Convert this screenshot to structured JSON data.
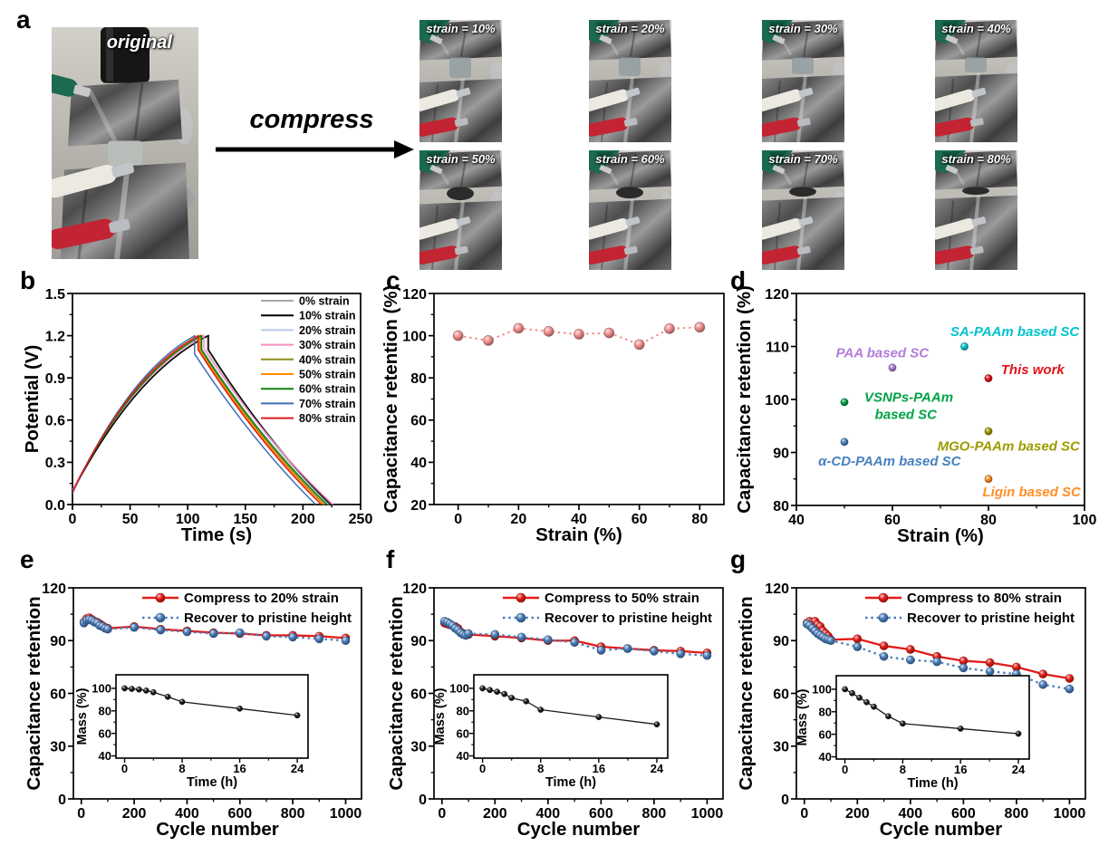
{
  "figure": {
    "panel_labels": {
      "a": "a",
      "b": "b",
      "c": "c",
      "d": "d",
      "e": "e",
      "f": "f",
      "g": "g"
    },
    "panel_a": {
      "original_label": "original",
      "arrow_label": "compress",
      "photos": [
        {
          "label": "strain = 10%",
          "strain": 10
        },
        {
          "label": "strain = 20%",
          "strain": 20
        },
        {
          "label": "strain = 30%",
          "strain": 30
        },
        {
          "label": "strain = 40%",
          "strain": 40
        },
        {
          "label": "strain = 50%",
          "strain": 50
        },
        {
          "label": "strain = 60%",
          "strain": 60
        },
        {
          "label": "strain = 70%",
          "strain": 70
        },
        {
          "label": "strain = 80%",
          "strain": 80
        }
      ]
    }
  },
  "chart_data": [
    {
      "id": "b",
      "type": "line",
      "title": "",
      "xlabel": "Time (s)",
      "ylabel": "Potential (V)",
      "xlim": [
        0,
        250
      ],
      "ylim": [
        0,
        1.5
      ],
      "xticks": [
        0,
        50,
        100,
        150,
        200,
        250
      ],
      "yticks": [
        0,
        0.3,
        0.6,
        0.9,
        1.2,
        1.5
      ],
      "ytick_labels": [
        "0.0",
        "0.3",
        "0.6",
        "0.9",
        "1.2",
        "1.5"
      ],
      "legend_position": "top-right",
      "grid": false,
      "series": [
        {
          "name": "0% strain",
          "color": "#A8A8A8",
          "v_start": 0.09,
          "v_peak": 1.2,
          "t_peak": 117,
          "ir_drop": 0.1,
          "t_end": 223
        },
        {
          "name": "10% strain",
          "color": "#000000",
          "v_start": 0.09,
          "v_peak": 1.2,
          "t_peak": 118,
          "ir_drop": 0.1,
          "t_end": 224
        },
        {
          "name": "20% strain",
          "color": "#B9CDEC",
          "v_start": 0.1,
          "v_peak": 1.2,
          "t_peak": 112,
          "ir_drop": 0.09,
          "t_end": 222
        },
        {
          "name": "30% strain",
          "color": "#F78FC1",
          "v_start": 0.1,
          "v_peak": 1.2,
          "t_peak": 114,
          "ir_drop": 0.09,
          "t_end": 226
        },
        {
          "name": "40% strain",
          "color": "#8E8E1B",
          "v_start": 0.09,
          "v_peak": 1.2,
          "t_peak": 111,
          "ir_drop": 0.1,
          "t_end": 219
        },
        {
          "name": "50% strain",
          "color": "#FF8C00",
          "v_start": 0.09,
          "v_peak": 1.2,
          "t_peak": 110,
          "ir_drop": 0.1,
          "t_end": 218
        },
        {
          "name": "60% strain",
          "color": "#108010",
          "v_start": 0.09,
          "v_peak": 1.2,
          "t_peak": 112,
          "ir_drop": 0.1,
          "t_end": 221
        },
        {
          "name": "70% strain",
          "color": "#3F6FB5",
          "v_start": 0.08,
          "v_peak": 1.2,
          "t_peak": 106,
          "ir_drop": 0.13,
          "t_end": 211
        },
        {
          "name": "80% strain",
          "color": "#E21A1A",
          "v_start": 0.09,
          "v_peak": 1.2,
          "t_peak": 109,
          "ir_drop": 0.1,
          "t_end": 216
        }
      ]
    },
    {
      "id": "c",
      "type": "scatter",
      "title": "",
      "xlabel": "Strain (%)",
      "ylabel": "Capacitance retention (%)",
      "xlim": [
        -8,
        88
      ],
      "ylim": [
        20,
        120
      ],
      "xticks": [
        0,
        20,
        40,
        60,
        80
      ],
      "yticks": [
        20,
        40,
        60,
        80,
        100,
        120
      ],
      "grid": false,
      "series": [
        {
          "name": "capacitance retention",
          "color": "#F28F8F",
          "line_style": "dotted",
          "x": [
            0,
            10,
            20,
            30,
            40,
            50,
            60,
            70,
            80
          ],
          "y": [
            100,
            97.7,
            103.5,
            102,
            100.7,
            101.3,
            95.8,
            103.3,
            104
          ]
        }
      ]
    },
    {
      "id": "d",
      "type": "scatter",
      "title": "",
      "xlabel": "Strain (%)",
      "ylabel": "Capacitance retention (%)",
      "xlim": [
        40,
        100
      ],
      "ylim": [
        80,
        120
      ],
      "xticks": [
        40,
        60,
        80,
        100
      ],
      "yticks": [
        80,
        90,
        100,
        110,
        120
      ],
      "grid": false,
      "points": [
        {
          "name": "SA-PAAm based SC",
          "x": 75,
          "y": 110,
          "color": "#00C4CC"
        },
        {
          "name": "PAA based SC",
          "x": 60,
          "y": 106,
          "color": "#B27CDB"
        },
        {
          "name": "This work",
          "x": 80,
          "y": 104,
          "color": "#E31219"
        },
        {
          "name": "VSNPs-PAAm based SC",
          "x": 50,
          "y": 99.5,
          "color": "#00A347"
        },
        {
          "name": "MGO-PAAm based SC",
          "x": 80,
          "y": 94,
          "color": "#9C9C00"
        },
        {
          "name": "α-CD-PAAm based SC",
          "x": 50,
          "y": 92,
          "color": "#4781C0"
        },
        {
          "name": "Ligin based SC",
          "x": 80,
          "y": 85,
          "color": "#FF8E28"
        }
      ],
      "labels": [
        {
          "text": "SA-PAAm based SC",
          "x": 85.5,
          "y": 112.8,
          "color": "#00C4CC"
        },
        {
          "text": "PAA based SC",
          "x": 57.9,
          "y": 108.8,
          "color": "#B27CDB"
        },
        {
          "text": "This work",
          "x": 89.2,
          "y": 105.6,
          "color": "#E31219"
        },
        {
          "text": "VSNPs-PAAm",
          "x": 63.4,
          "y": 100.4,
          "color": "#00A347"
        },
        {
          "text": "based SC",
          "x": 62.8,
          "y": 97.2,
          "color": "#00A347"
        },
        {
          "text": "MGO-PAAm based SC",
          "x": 84.2,
          "y": 91.2,
          "color": "#9C9C00"
        },
        {
          "text": "α-CD-PAAm based SC",
          "x": 59.4,
          "y": 88.4,
          "color": "#4781C0"
        },
        {
          "text": "Ligin based SC",
          "x": 89.0,
          "y": 82.6,
          "color": "#FF8E28"
        }
      ]
    },
    {
      "id": "e",
      "type": "line",
      "title": "",
      "xlabel": "Cycle number",
      "ylabel": "Capacitance retention",
      "xlim": [
        -30,
        1060
      ],
      "ylim": [
        0,
        120
      ],
      "xticks": [
        0,
        200,
        400,
        600,
        800,
        1000
      ],
      "yticks": [
        0,
        30,
        60,
        90,
        120
      ],
      "legend_position": "top-center",
      "grid": false,
      "series": [
        {
          "name": "Compress to 20% strain",
          "color": "#E41B17",
          "line_style": "solid",
          "x": [
            10,
            20,
            30,
            40,
            50,
            60,
            70,
            80,
            90,
            100,
            200,
            300,
            400,
            500,
            600,
            700,
            800,
            900,
            1000
          ],
          "y": [
            100.5,
            102.5,
            103,
            102,
            101,
            100.5,
            99.5,
            98.5,
            97.5,
            97,
            98,
            96.5,
            95.5,
            94.5,
            94,
            93,
            93,
            92.5,
            91.5
          ]
        },
        {
          "name": "Recover to pristine height",
          "color": "#4A7EBB",
          "line_style": "dotted",
          "x": [
            10,
            20,
            30,
            40,
            50,
            60,
            70,
            80,
            90,
            100,
            200,
            300,
            400,
            500,
            600,
            700,
            800,
            900,
            1000
          ],
          "y": [
            100,
            101.5,
            102,
            101.5,
            100.5,
            100,
            98.5,
            98,
            97,
            96.5,
            97.5,
            96,
            95,
            94,
            94.5,
            92.5,
            92,
            91,
            90
          ]
        }
      ],
      "inset": {
        "xlabel": "Time (h)",
        "ylabel": "Mass (%)",
        "xlim": [
          -1.2,
          25.5
        ],
        "ylim": [
          38,
          112
        ],
        "xticks": [
          0,
          8,
          16,
          24
        ],
        "yticks": [
          40,
          60,
          80,
          100
        ],
        "color": "#1a1a1a",
        "x": [
          0,
          1,
          2,
          3,
          4,
          6,
          8,
          16,
          24
        ],
        "y": [
          100,
          99.5,
          99,
          98,
          96.5,
          92.5,
          88,
          82,
          76
        ]
      }
    },
    {
      "id": "f",
      "type": "line",
      "title": "",
      "xlabel": "Cycle number",
      "ylabel": "Capacitance retention",
      "xlim": [
        -30,
        1060
      ],
      "ylim": [
        0,
        120
      ],
      "xticks": [
        0,
        200,
        400,
        600,
        800,
        1000
      ],
      "yticks": [
        0,
        30,
        60,
        90,
        120
      ],
      "legend_position": "top-center",
      "grid": false,
      "series": [
        {
          "name": "Compress to 50% strain",
          "color": "#E41B17",
          "line_style": "solid",
          "x": [
            10,
            20,
            30,
            40,
            50,
            60,
            70,
            80,
            90,
            100,
            200,
            300,
            400,
            500,
            600,
            700,
            800,
            900,
            1000
          ],
          "y": [
            100,
            99.5,
            99,
            98.5,
            98,
            97,
            95,
            94,
            93.5,
            93.5,
            92.5,
            91.5,
            90,
            90,
            86.5,
            85.5,
            84.5,
            84,
            83
          ]
        },
        {
          "name": "Recover to pristine height",
          "color": "#4A7EBB",
          "line_style": "dotted",
          "x": [
            10,
            20,
            30,
            40,
            50,
            60,
            70,
            80,
            90,
            100,
            200,
            300,
            400,
            500,
            600,
            700,
            800,
            900,
            1000
          ],
          "y": [
            101,
            100.5,
            99.5,
            98.5,
            97,
            96,
            94.5,
            93.5,
            93,
            94,
            93.5,
            92,
            90.5,
            89,
            84.5,
            85.5,
            84,
            82.5,
            81.5
          ]
        }
      ],
      "inset": {
        "xlabel": "Time (h)",
        "ylabel": "Mass (%)",
        "xlim": [
          -1.2,
          25.5
        ],
        "ylim": [
          38,
          112
        ],
        "xticks": [
          0,
          8,
          16,
          24
        ],
        "yticks": [
          40,
          60,
          80,
          100
        ],
        "color": "#1a1a1a",
        "x": [
          0,
          1,
          2,
          3,
          4,
          6,
          8,
          16,
          24
        ],
        "y": [
          100,
          98.5,
          97,
          95,
          91.5,
          88.5,
          81,
          74.5,
          68
        ]
      }
    },
    {
      "id": "g",
      "type": "line",
      "title": "",
      "xlabel": "Cycle number",
      "ylabel": "Capacitance retention",
      "xlim": [
        -30,
        1060
      ],
      "ylim": [
        0,
        120
      ],
      "xticks": [
        0,
        200,
        400,
        600,
        800,
        1000
      ],
      "yticks": [
        0,
        30,
        60,
        90,
        120
      ],
      "legend_position": "top-center",
      "grid": false,
      "series": [
        {
          "name": "Compress to 80% strain",
          "color": "#E41B17",
          "line_style": "solid",
          "x": [
            10,
            20,
            30,
            40,
            50,
            60,
            70,
            80,
            90,
            100,
            200,
            300,
            400,
            500,
            600,
            700,
            800,
            900,
            1000
          ],
          "y": [
            100,
            101,
            100.5,
            101,
            99,
            98,
            95.5,
            94,
            92.5,
            90.5,
            91,
            87,
            85,
            81,
            78.5,
            77.5,
            75,
            71,
            68.5
          ]
        },
        {
          "name": "Recover to pristine height",
          "color": "#4A7EBB",
          "line_style": "dotted",
          "x": [
            10,
            20,
            30,
            40,
            50,
            60,
            70,
            80,
            90,
            100,
            200,
            300,
            400,
            500,
            600,
            700,
            800,
            900,
            1000
          ],
          "y": [
            99.5,
            98.5,
            97,
            95.5,
            94,
            93,
            92,
            91,
            90.5,
            90,
            86.5,
            81,
            79,
            78,
            74.5,
            72.5,
            71,
            65,
            62.5
          ]
        }
      ],
      "inset": {
        "xlabel": "Time (h)",
        "ylabel": "Mass (%)",
        "xlim": [
          -1.2,
          25.5
        ],
        "ylim": [
          38,
          112
        ],
        "xticks": [
          0,
          8,
          16,
          24
        ],
        "yticks": [
          40,
          60,
          80,
          100
        ],
        "color": "#1a1a1a",
        "x": [
          0,
          1,
          2,
          3,
          4,
          6,
          8,
          16,
          24
        ],
        "y": [
          100,
          96.5,
          92.5,
          88.5,
          84.5,
          76,
          69.5,
          65,
          60.5
        ]
      }
    }
  ]
}
